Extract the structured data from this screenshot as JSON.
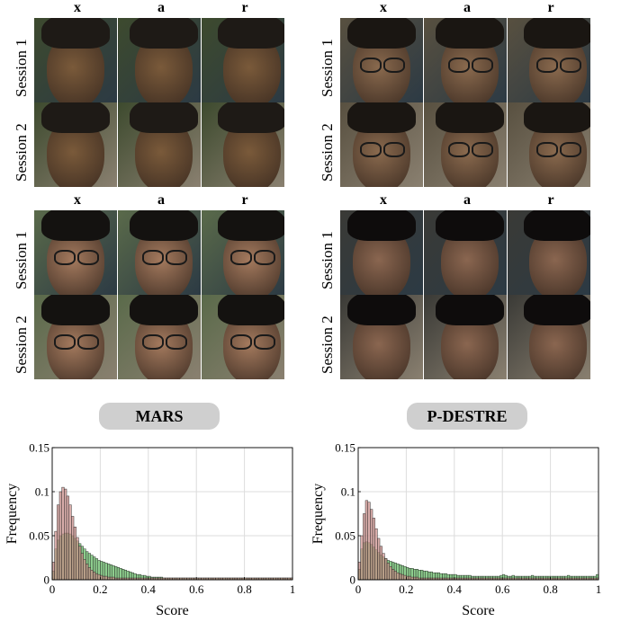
{
  "column_headers": [
    "x",
    "a",
    "r"
  ],
  "row_labels": [
    "Session 1",
    "Session 2"
  ],
  "datasets": [
    "MARS",
    "P-DESTRE"
  ],
  "colors": {
    "green": "#7ac67a",
    "red": "#c98a86",
    "pill": "#cfcfcf"
  },
  "chart_data": [
    {
      "type": "bar",
      "title": "",
      "xlabel": "Score",
      "ylabel": "Frequency",
      "xlim": [
        0,
        1
      ],
      "ylim": [
        0,
        0.15
      ],
      "xticks": [
        "0",
        "0.2",
        "0.4",
        "0.6",
        "0.8",
        "1"
      ],
      "yticks": [
        "0",
        "0.05",
        "0.1",
        "0.15"
      ],
      "grid": true,
      "bin_width": 0.01,
      "series": [
        {
          "color": "#7ac67a",
          "values": [
            0.01,
            0.035,
            0.045,
            0.05,
            0.052,
            0.053,
            0.053,
            0.052,
            0.05,
            0.047,
            0.044,
            0.041,
            0.038,
            0.035,
            0.032,
            0.03,
            0.028,
            0.026,
            0.024,
            0.022,
            0.021,
            0.02,
            0.019,
            0.018,
            0.017,
            0.016,
            0.015,
            0.014,
            0.013,
            0.012,
            0.011,
            0.01,
            0.009,
            0.008,
            0.007,
            0.006,
            0.006,
            0.005,
            0.005,
            0.004,
            0.004,
            0.003,
            0.003,
            0.003,
            0.003,
            0.003,
            0.002,
            0.002,
            0.002,
            0.002,
            0.002,
            0.002,
            0.002,
            0.002,
            0.002,
            0.002,
            0.002,
            0.002,
            0.002,
            0.002,
            0.002,
            0.002,
            0.002,
            0.002,
            0.002,
            0.002,
            0.002,
            0.002,
            0.002,
            0.002,
            0.002,
            0.002,
            0.002,
            0.002,
            0.002,
            0.002,
            0.002,
            0.002,
            0.002,
            0.002,
            0.002,
            0.002,
            0.002,
            0.002,
            0.002,
            0.002,
            0.002,
            0.002,
            0.002,
            0.002,
            0.002,
            0.002,
            0.002,
            0.002,
            0.002,
            0.002,
            0.002,
            0.002,
            0.002,
            0.002
          ]
        },
        {
          "color": "#c98a86",
          "values": [
            0.02,
            0.055,
            0.085,
            0.1,
            0.105,
            0.103,
            0.095,
            0.085,
            0.072,
            0.06,
            0.048,
            0.038,
            0.03,
            0.023,
            0.018,
            0.014,
            0.011,
            0.009,
            0.007,
            0.006,
            0.005,
            0.004,
            0.004,
            0.003,
            0.003,
            0.003,
            0.002,
            0.002,
            0.002,
            0.002,
            0.002,
            0.002,
            0.002,
            0.002,
            0.002,
            0.002,
            0.002,
            0.002,
            0.002,
            0.002,
            0.002,
            0.002,
            0.002,
            0.002,
            0.002,
            0.002,
            0.002,
            0.002,
            0.002,
            0.002,
            0.002,
            0.002,
            0.002,
            0.002,
            0.002,
            0.002,
            0.002,
            0.002,
            0.002,
            0.002,
            0.002,
            0.002,
            0.002,
            0.002,
            0.002,
            0.002,
            0.002,
            0.002,
            0.002,
            0.002,
            0.002,
            0.002,
            0.002,
            0.002,
            0.002,
            0.002,
            0.002,
            0.002,
            0.002,
            0.002,
            0.002,
            0.002,
            0.002,
            0.002,
            0.002,
            0.002,
            0.002,
            0.002,
            0.002,
            0.002,
            0.002,
            0.002,
            0.002,
            0.002,
            0.002,
            0.002,
            0.002,
            0.002,
            0.002,
            0.002
          ]
        }
      ]
    },
    {
      "type": "bar",
      "title": "",
      "xlabel": "Score",
      "ylabel": "Frequency",
      "xlim": [
        0,
        1
      ],
      "ylim": [
        0,
        0.15
      ],
      "xticks": [
        "0",
        "0.2",
        "0.4",
        "0.6",
        "0.8",
        "1"
      ],
      "yticks": [
        "0",
        "0.05",
        "0.1",
        "0.15"
      ],
      "grid": true,
      "bin_width": 0.01,
      "series": [
        {
          "color": "#7ac67a",
          "values": [
            0.012,
            0.035,
            0.042,
            0.043,
            0.042,
            0.04,
            0.037,
            0.034,
            0.031,
            0.028,
            0.026,
            0.024,
            0.022,
            0.021,
            0.02,
            0.019,
            0.018,
            0.017,
            0.016,
            0.015,
            0.014,
            0.013,
            0.013,
            0.012,
            0.012,
            0.011,
            0.011,
            0.01,
            0.01,
            0.009,
            0.009,
            0.008,
            0.008,
            0.008,
            0.007,
            0.007,
            0.007,
            0.006,
            0.006,
            0.006,
            0.006,
            0.005,
            0.005,
            0.005,
            0.005,
            0.005,
            0.005,
            0.004,
            0.004,
            0.004,
            0.004,
            0.004,
            0.004,
            0.004,
            0.004,
            0.004,
            0.004,
            0.004,
            0.004,
            0.005,
            0.006,
            0.005,
            0.004,
            0.004,
            0.005,
            0.004,
            0.004,
            0.004,
            0.004,
            0.004,
            0.004,
            0.004,
            0.005,
            0.004,
            0.004,
            0.004,
            0.004,
            0.004,
            0.004,
            0.004,
            0.004,
            0.004,
            0.004,
            0.004,
            0.004,
            0.004,
            0.004,
            0.005,
            0.004,
            0.004,
            0.004,
            0.004,
            0.004,
            0.004,
            0.004,
            0.004,
            0.004,
            0.004,
            0.004,
            0.006
          ]
        },
        {
          "color": "#c98a86",
          "values": [
            0.02,
            0.05,
            0.075,
            0.09,
            0.088,
            0.08,
            0.07,
            0.058,
            0.047,
            0.038,
            0.03,
            0.024,
            0.019,
            0.015,
            0.012,
            0.01,
            0.008,
            0.007,
            0.006,
            0.005,
            0.004,
            0.004,
            0.003,
            0.003,
            0.003,
            0.002,
            0.002,
            0.002,
            0.002,
            0.002,
            0.002,
            0.002,
            0.002,
            0.002,
            0.002,
            0.002,
            0.002,
            0.002,
            0.002,
            0.002,
            0.002,
            0.002,
            0.002,
            0.002,
            0.002,
            0.002,
            0.002,
            0.002,
            0.002,
            0.002,
            0.002,
            0.002,
            0.002,
            0.002,
            0.002,
            0.002,
            0.002,
            0.002,
            0.002,
            0.002,
            0.002,
            0.002,
            0.002,
            0.002,
            0.002,
            0.002,
            0.002,
            0.002,
            0.002,
            0.002,
            0.002,
            0.002,
            0.002,
            0.002,
            0.002,
            0.002,
            0.002,
            0.002,
            0.002,
            0.002,
            0.002,
            0.002,
            0.002,
            0.002,
            0.002,
            0.002,
            0.002,
            0.002,
            0.002,
            0.002,
            0.002,
            0.002,
            0.002,
            0.002,
            0.002,
            0.002,
            0.002,
            0.002,
            0.002,
            0.002
          ]
        }
      ]
    }
  ]
}
